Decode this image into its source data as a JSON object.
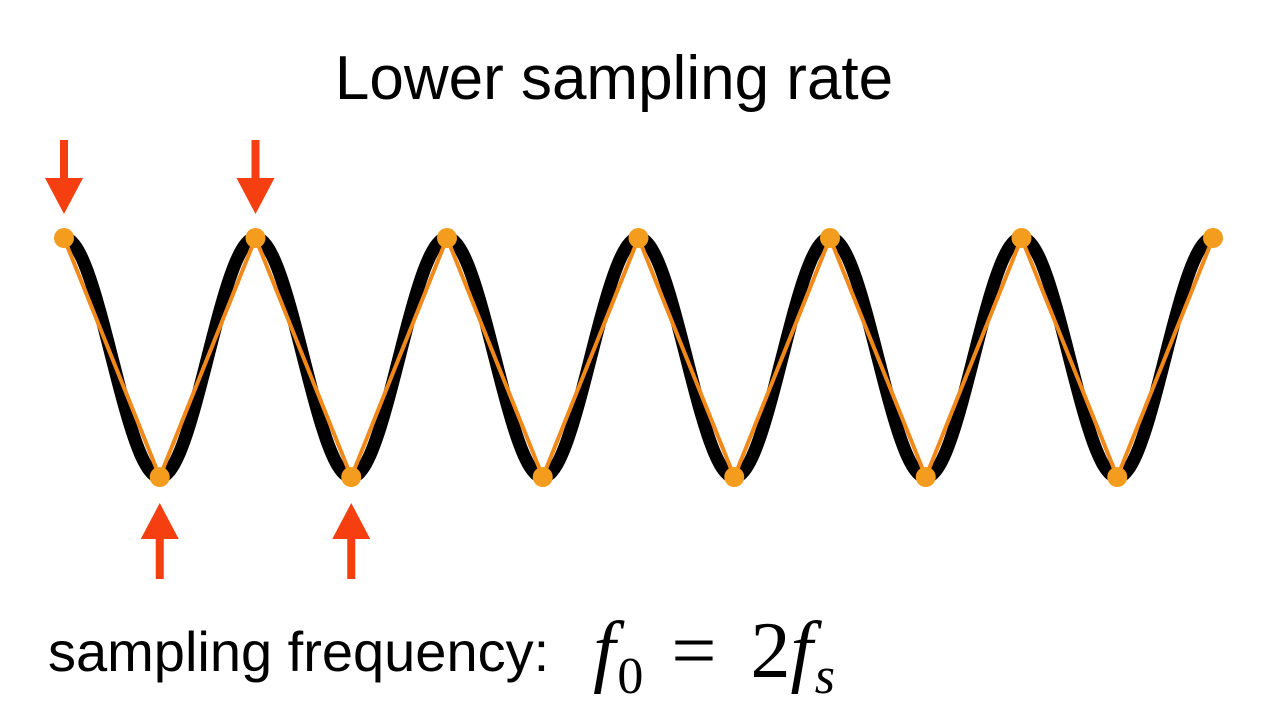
{
  "title": "Lower sampling rate",
  "footer": {
    "label": "sampling frequency:",
    "formula": {
      "f0_base": "f",
      "f0_sub": "0",
      "equals": "=",
      "coefficient": "2",
      "fs_base": "f",
      "fs_sub": "s"
    }
  },
  "signal": {
    "cycles": 6,
    "sample_points": 13,
    "samples_per_cycle": 2,
    "first_sample_at": "peak"
  },
  "highlighted_samples": [
    0,
    1,
    2,
    3
  ],
  "colors": {
    "signal": "#000000",
    "samples": "#f39c1e",
    "sample_line": "#f0891a",
    "arrows": "#f53f10",
    "text": "#000000"
  }
}
